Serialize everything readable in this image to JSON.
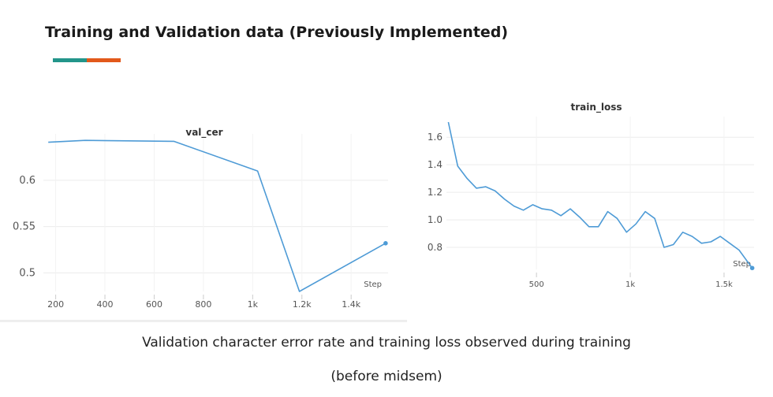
{
  "header": {
    "title": "Training and Validation data (Previously Implemented)"
  },
  "accent_colors": [
    "#23958a",
    "#e2591b"
  ],
  "line_color": "#4e9bd6",
  "chart_data": [
    {
      "type": "line",
      "title": "val_cer",
      "xlabel": "Step",
      "ylabel": "",
      "x_ticks": [
        "200",
        "400",
        "600",
        "800",
        "1k",
        "1.2k",
        "1.4k"
      ],
      "y_ticks": [
        "0.6",
        "0.55",
        "0.5"
      ],
      "xlim": [
        150,
        1550
      ],
      "ylim": [
        0.48,
        0.65
      ],
      "grid": true,
      "series": [
        {
          "x": [
            170,
            320,
            680,
            1020,
            1190,
            1540
          ],
          "y": [
            0.641,
            0.643,
            0.642,
            0.61,
            0.48,
            0.532
          ]
        }
      ]
    },
    {
      "type": "line",
      "title": "train_loss",
      "xlabel": "Step",
      "ylabel": "",
      "x_ticks": [
        "500",
        "1k",
        "1.5k"
      ],
      "y_ticks": [
        "1.6",
        "1.4",
        "1.2",
        "1.0",
        "0.8"
      ],
      "xlim": [
        20,
        1660
      ],
      "ylim": [
        0.64,
        1.75
      ],
      "grid": true,
      "series": [
        {
          "x": [
            30,
            80,
            130,
            180,
            230,
            280,
            330,
            380,
            430,
            480,
            530,
            580,
            630,
            680,
            730,
            780,
            830,
            880,
            930,
            980,
            1030,
            1080,
            1130,
            1180,
            1230,
            1280,
            1330,
            1380,
            1430,
            1480,
            1530,
            1580,
            1650
          ],
          "y": [
            1.71,
            1.39,
            1.3,
            1.23,
            1.24,
            1.21,
            1.15,
            1.1,
            1.07,
            1.11,
            1.08,
            1.07,
            1.03,
            1.08,
            1.02,
            0.95,
            0.95,
            1.06,
            1.01,
            0.91,
            0.97,
            1.06,
            1.01,
            0.8,
            0.82,
            0.91,
            0.88,
            0.83,
            0.84,
            0.88,
            0.83,
            0.78,
            0.65
          ]
        }
      ]
    }
  ],
  "caption": {
    "line1": "Validation character error rate and training loss observed during training",
    "line2": "(before midsem)"
  }
}
